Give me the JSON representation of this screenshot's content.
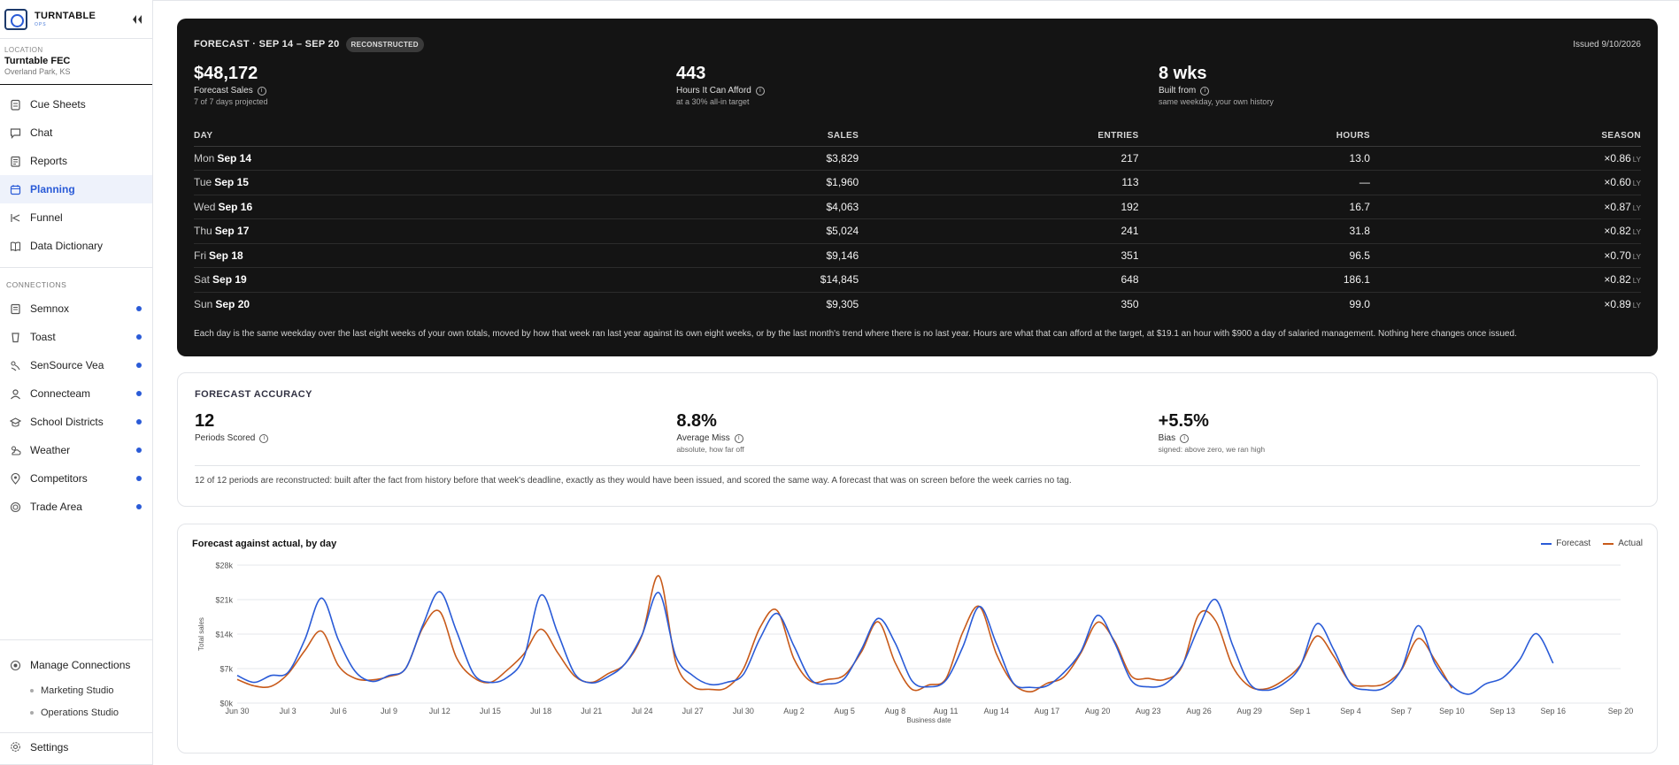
{
  "brand": {
    "name": "TURNTABLE",
    "sub": "OPS"
  },
  "location": {
    "label": "LOCATION",
    "name": "Turntable FEC",
    "city": "Overland Park, KS"
  },
  "nav": [
    {
      "label": "Cue Sheets",
      "icon": "clipboard-icon"
    },
    {
      "label": "Chat",
      "icon": "chat-icon"
    },
    {
      "label": "Reports",
      "icon": "report-icon"
    },
    {
      "label": "Planning",
      "icon": "calendar-icon",
      "active": true
    },
    {
      "label": "Funnel",
      "icon": "funnel-icon"
    },
    {
      "label": "Data Dictionary",
      "icon": "book-icon"
    }
  ],
  "connections": {
    "label": "CONNECTIONS",
    "items": [
      {
        "label": "Semnox",
        "icon": "register-icon"
      },
      {
        "label": "Toast",
        "icon": "toast-icon"
      },
      {
        "label": "SenSource Vea",
        "icon": "sensor-icon"
      },
      {
        "label": "Connecteam",
        "icon": "person-icon"
      },
      {
        "label": "School Districts",
        "icon": "school-icon"
      },
      {
        "label": "Weather",
        "icon": "weather-icon"
      },
      {
        "label": "Competitors",
        "icon": "pin-icon"
      },
      {
        "label": "Trade Area",
        "icon": "target-icon"
      }
    ]
  },
  "bottom": {
    "manage": "Manage Connections",
    "subs": [
      "Marketing Studio",
      "Operations Studio"
    ],
    "settings": "Settings"
  },
  "forecast": {
    "title": "FORECAST · SEP 14 – SEP 20",
    "badge": "RECONSTRUCTED",
    "issued": "Issued 9/10/2026",
    "kpis": [
      {
        "value": "$48,172",
        "label": "Forecast Sales",
        "sub": "7 of 7 days projected"
      },
      {
        "value": "443",
        "label": "Hours It Can Afford",
        "sub": "at a 30% all-in target"
      },
      {
        "value": "8 wks",
        "label": "Built from",
        "sub": "same weekday, your own history"
      }
    ],
    "columns": [
      "DAY",
      "SALES",
      "ENTRIES",
      "HOURS",
      "SEASON"
    ],
    "rows": [
      {
        "dow": "Mon",
        "date": "Sep 14",
        "sales": "$3,829",
        "entries": "217",
        "hours": "13.0",
        "season": "×0.86",
        "suffix": "LY"
      },
      {
        "dow": "Tue",
        "date": "Sep 15",
        "sales": "$1,960",
        "entries": "113",
        "hours": "—",
        "season": "×0.60",
        "suffix": "LY"
      },
      {
        "dow": "Wed",
        "date": "Sep 16",
        "sales": "$4,063",
        "entries": "192",
        "hours": "16.7",
        "season": "×0.87",
        "suffix": "LY"
      },
      {
        "dow": "Thu",
        "date": "Sep 17",
        "sales": "$5,024",
        "entries": "241",
        "hours": "31.8",
        "season": "×0.82",
        "suffix": "LY"
      },
      {
        "dow": "Fri",
        "date": "Sep 18",
        "sales": "$9,146",
        "entries": "351",
        "hours": "96.5",
        "season": "×0.70",
        "suffix": "LY"
      },
      {
        "dow": "Sat",
        "date": "Sep 19",
        "sales": "$14,845",
        "entries": "648",
        "hours": "186.1",
        "season": "×0.82",
        "suffix": "LY"
      },
      {
        "dow": "Sun",
        "date": "Sep 20",
        "sales": "$9,305",
        "entries": "350",
        "hours": "99.0",
        "season": "×0.89",
        "suffix": "LY"
      }
    ],
    "note": "Each day is the same weekday over the last eight weeks of your own totals, moved by how that week ran last year against its own eight weeks, or by the last month's trend where there is no last year. Hours are what that can afford at the target, at $19.1 an hour with $900 a day of salaried management. Nothing here changes once issued."
  },
  "accuracy": {
    "title": "FORECAST ACCURACY",
    "kpis": [
      {
        "value": "12",
        "label": "Periods Scored",
        "sub": ""
      },
      {
        "value": "8.8%",
        "label": "Average Miss",
        "sub": "absolute, how far off"
      },
      {
        "value": "+5.5%",
        "label": "Bias",
        "sub": "signed: above zero, we ran high"
      }
    ],
    "note": "12 of 12 periods are reconstructed: built after the fact from history before that week's deadline, exactly as they would have been issued, and scored the same way. A forecast that was on screen before the week carries no tag."
  },
  "chart_data": {
    "type": "line",
    "title": "Forecast against actual, by day",
    "xlabel": "Business date",
    "ylabel": "Total sales",
    "ylim": [
      0,
      28000
    ],
    "yticks": [
      0,
      7000,
      14000,
      21000,
      28000
    ],
    "ytick_labels": [
      "$0k",
      "$7k",
      "$14k",
      "$21k",
      "$28k"
    ],
    "xtick_labels": [
      "Jun 30",
      "Jul 3",
      "Jul 6",
      "Jul 9",
      "Jul 12",
      "Jul 15",
      "Jul 18",
      "Jul 21",
      "Jul 24",
      "Jul 27",
      "Jul 30",
      "Aug 2",
      "Aug 5",
      "Aug 8",
      "Aug 11",
      "Aug 14",
      "Aug 17",
      "Aug 20",
      "Aug 23",
      "Aug 26",
      "Aug 29",
      "Sep 1",
      "Sep 4",
      "Sep 7",
      "Sep 10",
      "Sep 13",
      "Sep 16",
      "Sep 20"
    ],
    "xtick_days": [
      0,
      3,
      6,
      9,
      12,
      15,
      18,
      21,
      24,
      27,
      30,
      33,
      36,
      39,
      42,
      45,
      48,
      51,
      54,
      57,
      60,
      63,
      66,
      69,
      72,
      75,
      78,
      82
    ],
    "grid": true,
    "legend": "top-right",
    "x_start": "Jun 29",
    "series": [
      {
        "name": "Forecast",
        "color": "#2a5bd7",
        "values": [
          5600,
          4200,
          5600,
          6200,
          12800,
          21300,
          12800,
          6400,
          4400,
          5600,
          7100,
          15800,
          22600,
          14600,
          6000,
          4200,
          5200,
          9300,
          21900,
          14200,
          6000,
          4100,
          5400,
          8000,
          13900,
          22400,
          9500,
          5600,
          3800,
          4200,
          5800,
          13200,
          18200,
          11600,
          4800,
          3900,
          5000,
          10900,
          17200,
          12200,
          4500,
          3300,
          4600,
          11300,
          19600,
          12100,
          4100,
          3200,
          3500,
          6200,
          10400,
          17800,
          12300,
          4600,
          3300,
          3900,
          7600,
          15400,
          21000,
          11800,
          4000,
          2600,
          3900,
          7400,
          16100,
          10800,
          3900,
          2700,
          3100,
          6800,
          15700,
          8000,
          3500,
          1800,
          3900,
          5100,
          8700,
          14100,
          8100
        ]
      },
      {
        "name": "Actual",
        "color": "#c85a1a",
        "values": [
          4800,
          3500,
          3400,
          5900,
          10600,
          14600,
          7600,
          5000,
          4700,
          5400,
          7100,
          15300,
          18600,
          9200,
          5200,
          4200,
          6700,
          10000,
          15000,
          10200,
          5500,
          4200,
          6000,
          8000,
          13800,
          25800,
          8300,
          3400,
          2800,
          3100,
          6900,
          15400,
          18800,
          9000,
          4400,
          4800,
          5700,
          10400,
          16500,
          8200,
          2800,
          3700,
          4900,
          14300,
          19600,
          10000,
          4000,
          2300,
          4000,
          5300,
          10100,
          16400,
          12600,
          5500,
          5000,
          4800,
          7400,
          18000,
          16700,
          7500,
          3400,
          2900,
          4600,
          7600,
          13600,
          9500,
          4100,
          3500,
          3900,
          6700,
          13100,
          8700,
          3000
        ]
      }
    ]
  }
}
